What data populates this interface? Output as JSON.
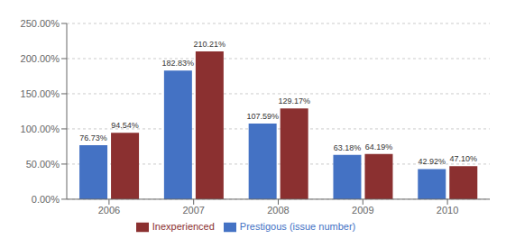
{
  "chart_data": {
    "type": "bar",
    "categories": [
      "2006",
      "2007",
      "2008",
      "2009",
      "2010"
    ],
    "series": [
      {
        "name": "Prestigous (issue number)",
        "color": "#4472C4",
        "values": [
          76.73,
          182.83,
          107.59,
          63.18,
          42.92
        ],
        "value_labels": [
          "76.73%",
          "182.83%",
          "107.59%",
          "63.18%",
          "42.92%"
        ]
      },
      {
        "name": "Inexperienced",
        "color": "#8B3030",
        "values": [
          94.54,
          210.21,
          129.17,
          64.19,
          47.1
        ],
        "value_labels": [
          "94.54%",
          "210.21%",
          "129.17%",
          "64.19%",
          "47.10%"
        ]
      }
    ],
    "ylim": [
      0,
      250
    ],
    "yticks": [
      {
        "value": 0,
        "label": "0.00%"
      },
      {
        "value": 50,
        "label": "50.00%"
      },
      {
        "value": 100,
        "label": "100.00%"
      },
      {
        "value": 150,
        "label": "150.00%"
      },
      {
        "value": 200,
        "label": "200.00%"
      },
      {
        "value": 250,
        "label": "250.00%"
      }
    ],
    "grid": true,
    "legend": "bottom",
    "data_labels": true
  }
}
